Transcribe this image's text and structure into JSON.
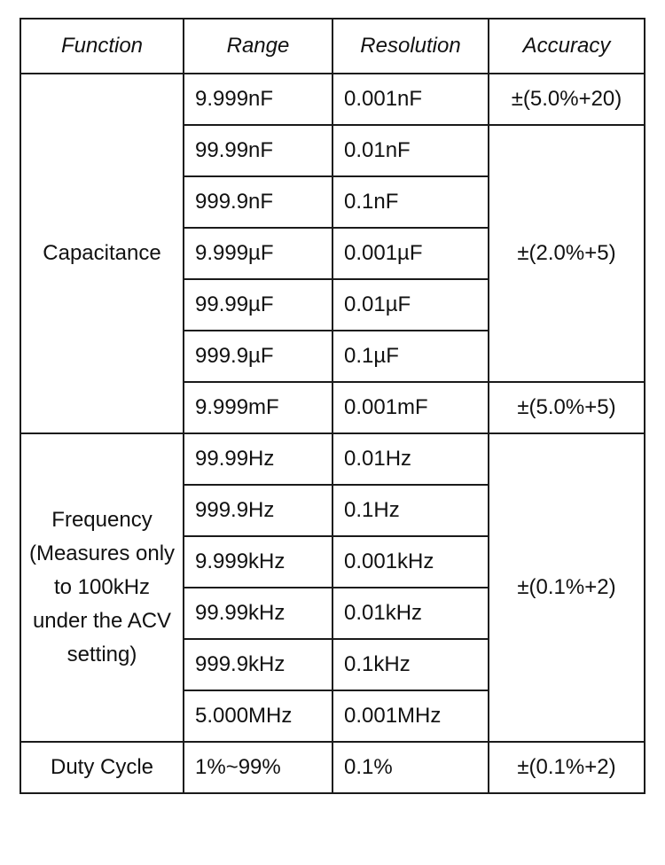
{
  "headers": {
    "function": "Function",
    "range": "Range",
    "resolution": "Resolution",
    "accuracy": "Accuracy"
  },
  "capacitance": {
    "function": "Capacitance",
    "rows": [
      {
        "range": "9.999nF",
        "resolution": "0.001nF"
      },
      {
        "range": "99.99nF",
        "resolution": "0.01nF"
      },
      {
        "range": "999.9nF",
        "resolution": "0.1nF"
      },
      {
        "range": "9.999µF",
        "resolution": "0.001µF"
      },
      {
        "range": "99.99µF",
        "resolution": "0.01µF"
      },
      {
        "range": "999.9µF",
        "resolution": "0.1µF"
      },
      {
        "range": "9.999mF",
        "resolution": "0.001mF"
      }
    ],
    "accuracy": [
      "±(5.0%+20)",
      "±(2.0%+5)",
      "±(5.0%+5)"
    ]
  },
  "frequency": {
    "function": "Frequency (Measures only to 100kHz under the ACV setting)",
    "rows": [
      {
        "range": "99.99Hz",
        "resolution": "0.01Hz"
      },
      {
        "range": "999.9Hz",
        "resolution": "0.1Hz"
      },
      {
        "range": "9.999kHz",
        "resolution": "0.001kHz"
      },
      {
        "range": "99.99kHz",
        "resolution": "0.01kHz"
      },
      {
        "range": "999.9kHz",
        "resolution": "0.1kHz"
      },
      {
        "range": "5.000MHz",
        "resolution": "0.001MHz"
      }
    ],
    "accuracy": "±(0.1%+2)"
  },
  "duty_cycle": {
    "function": "Duty Cycle",
    "range": "1%~99%",
    "resolution": "0.1%",
    "accuracy": "±(0.1%+2)"
  }
}
